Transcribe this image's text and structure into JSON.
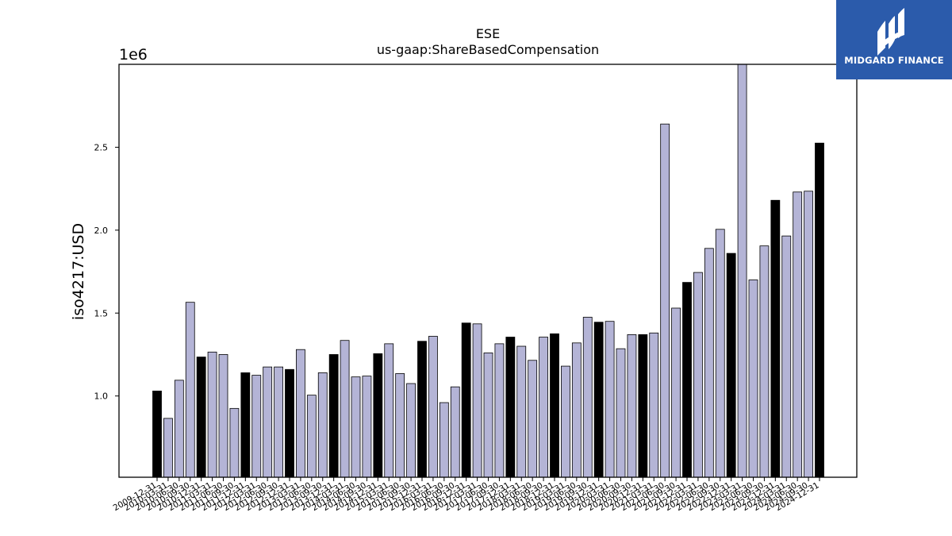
{
  "chart_data": {
    "type": "bar",
    "title": "ESE",
    "subtitle": "us-gaap:ShareBasedCompensation",
    "ylabel": "iso4217:USD",
    "xlabel": "",
    "y_multiplier": "1e6",
    "ylim": [
      510000,
      3000000
    ],
    "yticks": [
      1.0,
      1.5,
      2.0,
      2.5
    ],
    "legend": "none",
    "grid": false,
    "colors": {
      "annual": "#000000",
      "quarterly": "#b4b4d6",
      "edge": "#000000"
    },
    "categories": [
      "2009-12-31",
      "2010-03-31",
      "2010-06-30",
      "2010-09-30",
      "2010-12-31",
      "2011-03-31",
      "2011-06-30",
      "2011-09-30",
      "2011-12-31",
      "2012-03-31",
      "2012-06-30",
      "2012-09-30",
      "2012-12-31",
      "2013-03-31",
      "2013-06-30",
      "2013-09-30",
      "2013-12-31",
      "2014-03-31",
      "2014-06-30",
      "2014-09-30",
      "2014-12-31",
      "2015-03-31",
      "2015-06-30",
      "2015-09-30",
      "2015-12-31",
      "2016-03-31",
      "2016-06-30",
      "2016-09-30",
      "2016-12-31",
      "2017-03-31",
      "2017-06-30",
      "2017-09-30",
      "2017-12-31",
      "2018-03-31",
      "2018-06-30",
      "2018-09-30",
      "2018-12-31",
      "2019-03-31",
      "2019-06-30",
      "2019-09-30",
      "2019-12-31",
      "2020-03-31",
      "2020-06-30",
      "2020-09-30",
      "2020-12-31",
      "2021-03-31",
      "2021-06-30",
      "2021-09-30",
      "2021-12-31",
      "2022-03-31",
      "2022-06-30",
      "2022-09-30",
      "2022-12-31",
      "2023-03-31",
      "2023-06-30",
      "2023-09-30",
      "2023-12-31",
      "2024-03-31",
      "2024-06-30",
      "2024-09-30",
      "2024-12-31"
    ],
    "values": [
      1030000,
      865000,
      1095000,
      1565000,
      1235000,
      1265000,
      1250000,
      925000,
      1140000,
      1125000,
      1175000,
      1175000,
      1160000,
      1280000,
      1005000,
      1140000,
      1250000,
      1335000,
      1115000,
      1120000,
      1255000,
      1315000,
      1135000,
      1075000,
      1330000,
      1360000,
      960000,
      1055000,
      1440000,
      1435000,
      1260000,
      1315000,
      1355000,
      1300000,
      1215000,
      1355000,
      1375000,
      1180000,
      1320000,
      1475000,
      1445000,
      1450000,
      1285000,
      1370000,
      1370000,
      1380000,
      2640000,
      1530000,
      1685000,
      1745000,
      1890000,
      2005000,
      1860000,
      3000000,
      1700000,
      1905000,
      2180000,
      1965000,
      2230000,
      2235000,
      2525000
    ],
    "annual_flags": [
      1,
      0,
      0,
      0,
      1,
      0,
      0,
      0,
      1,
      0,
      0,
      0,
      1,
      0,
      0,
      0,
      1,
      0,
      0,
      0,
      1,
      0,
      0,
      0,
      1,
      0,
      0,
      0,
      1,
      0,
      0,
      0,
      1,
      0,
      0,
      0,
      1,
      0,
      0,
      0,
      1,
      0,
      0,
      0,
      1,
      0,
      0,
      0,
      1,
      0,
      0,
      0,
      1,
      0,
      0,
      0,
      1,
      0,
      0,
      0,
      1
    ]
  },
  "logo": {
    "text": "MIDGARD FINANCE",
    "icon": "midgard-logo-icon"
  }
}
